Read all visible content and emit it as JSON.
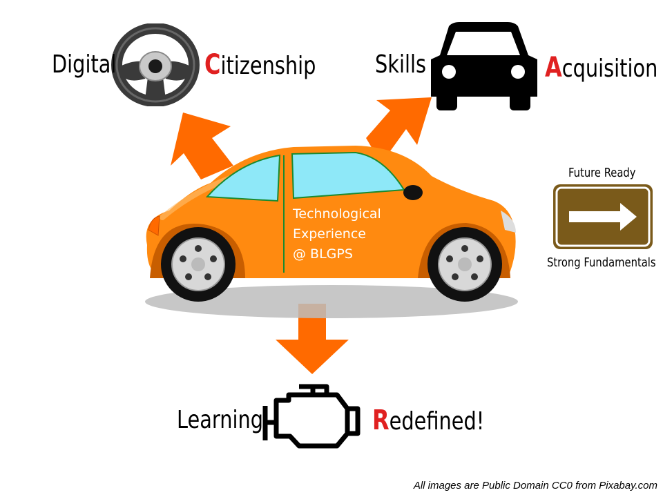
{
  "branches": [
    {
      "prefix": "Digital",
      "initial": "C",
      "rest": "itizenship",
      "icon": "steering-wheel-icon"
    },
    {
      "prefix": "Skills",
      "initial": "A",
      "rest": "cquisition",
      "icon": "car-front-icon"
    },
    {
      "prefix": "Learning",
      "initial": "R",
      "rest": "edefined!",
      "icon": "engine-icon"
    }
  ],
  "car_text": {
    "line1": "Technological",
    "line2": "Experience",
    "line3": "@ BLGPS"
  },
  "sign": {
    "top": "Future Ready",
    "bottom": "Strong Fundamentals",
    "icon": "right-arrow-icon"
  },
  "credit": "All images are Public Domain CC0 from Pixabay.com",
  "colors": {
    "arrow": "#ff6a00",
    "car_body": "#ff8a10",
    "accent_letter": "#e02020",
    "sign_brown": "#7a5a1a",
    "window": "#8ee8f8"
  }
}
